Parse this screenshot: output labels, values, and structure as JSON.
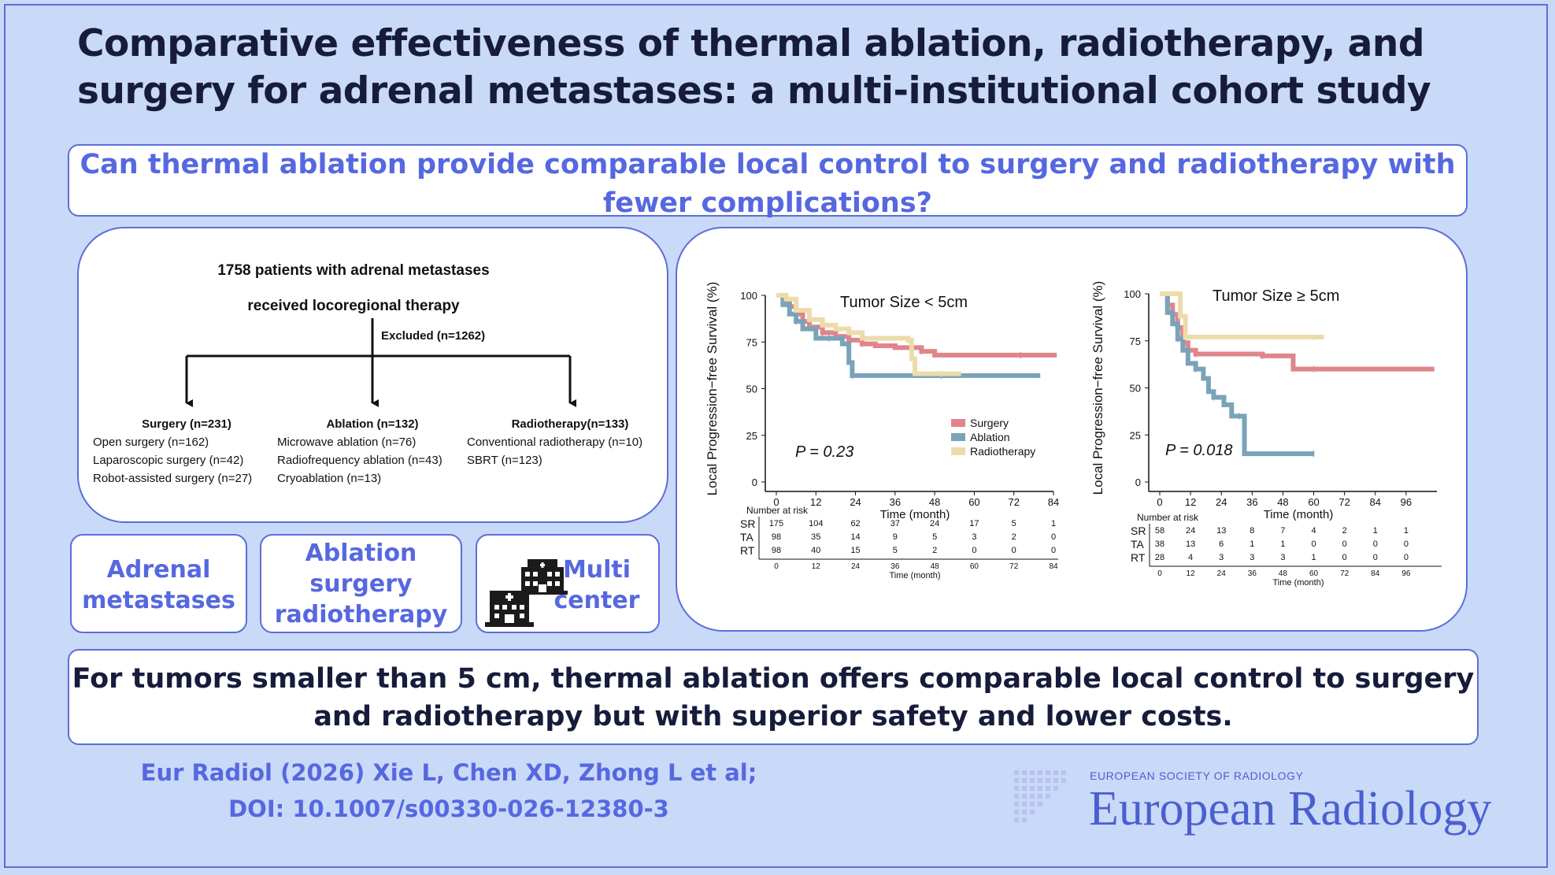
{
  "title_lines": [
    "Comparative effectiveness of thermal ablation, radiotherapy, and",
    "surgery for adrenal metastases: a multi-institutional cohort study"
  ],
  "question_lines": [
    "Can thermal ablation provide comparable local control to surgery and radiotherapy with",
    "fewer complications?"
  ],
  "flowchart": {
    "top_lines": [
      "1758 patients with adrenal metastases",
      "received locoregional therapy"
    ],
    "excluded": "Excluded (n=1262)",
    "groups": [
      {
        "title": "Surgery (n=231)",
        "items": [
          "Open surgery (n=162)",
          "Laparoscopic surgery (n=42)",
          "Robot-assisted surgery (n=27)"
        ]
      },
      {
        "title": "Ablation (n=132)",
        "items": [
          "Microwave ablation (n=76)",
          "Radiofrequency ablation (n=43)",
          "Cryoablation (n=13)"
        ]
      },
      {
        "title": "Radiotherapy(n=133)",
        "items": [
          "Conventional radiotherapy (n=10)",
          "SBRT (n=123)"
        ]
      }
    ]
  },
  "keywords": {
    "adrenal": [
      "Adrenal",
      "metastases"
    ],
    "treatments": [
      "Ablation",
      "surgery",
      "radiotherapy"
    ],
    "multicenter": [
      "Multi",
      "center"
    ]
  },
  "conclusion_lines": [
    "For tumors smaller than 5 cm, thermal ablation offers comparable local control to surgery",
    "and radiotherapy but with superior safety and lower costs."
  ],
  "citation_lines": [
    "Eur Radiol (2026) Xie L, Chen XD, Zhong L et al;",
    "DOI: 10.1007/s00330-026-12380-3"
  ],
  "society": "EUROPEAN SOCIETY OF RADIOLOGY",
  "journal": "European Radiology",
  "colors": {
    "surgery": "#e0858b",
    "ablation": "#7aa3b9",
    "radiotherapy": "#ecdcac",
    "accent": "#5668e0",
    "border": "#5b6fd6",
    "dark": "#161c3a"
  },
  "chart_data": [
    {
      "type": "line",
      "title": "Tumor Size < 5cm",
      "ylabel": "Local Progression−free Survival (%)",
      "xlabel": "Time (month)",
      "xticks": [
        0,
        12,
        24,
        36,
        48,
        60,
        72,
        84
      ],
      "yticks": [
        0,
        25,
        50,
        75,
        100
      ],
      "xlim": [
        0,
        84
      ],
      "ylim": [
        0,
        100
      ],
      "p_value": "P = 0.23",
      "legend": [
        "Surgery",
        "Ablation",
        "Radiotherapy"
      ],
      "legend_position": "lower-right",
      "series": [
        {
          "name": "Surgery",
          "color": "#e0858b",
          "points": [
            [
              0,
              100
            ],
            [
              2,
              97
            ],
            [
              4,
              94
            ],
            [
              6,
              90
            ],
            [
              8,
              86
            ],
            [
              10,
              83
            ],
            [
              14,
              80
            ],
            [
              18,
              78
            ],
            [
              22,
              76
            ],
            [
              26,
              74
            ],
            [
              30,
              73
            ],
            [
              36,
              72
            ],
            [
              44,
              70
            ],
            [
              48,
              68
            ],
            [
              60,
              68
            ],
            [
              74,
              68
            ],
            [
              85,
              68
            ]
          ]
        },
        {
          "name": "Ablation",
          "color": "#7aa3b9",
          "points": [
            [
              0,
              100
            ],
            [
              2,
              95
            ],
            [
              4,
              90
            ],
            [
              6,
              86
            ],
            [
              8,
              82
            ],
            [
              12,
              77
            ],
            [
              16,
              77
            ],
            [
              20,
              74
            ],
            [
              22,
              64
            ],
            [
              23,
              57
            ],
            [
              30,
              57
            ],
            [
              40,
              57
            ],
            [
              50,
              57
            ],
            [
              60,
              57
            ],
            [
              80,
              57
            ]
          ]
        },
        {
          "name": "Radiotherapy",
          "color": "#ecdcac",
          "points": [
            [
              0,
              100
            ],
            [
              3,
              98
            ],
            [
              6,
              92
            ],
            [
              10,
              87
            ],
            [
              14,
              84
            ],
            [
              18,
              82
            ],
            [
              22,
              80
            ],
            [
              26,
              77
            ],
            [
              32,
              77
            ],
            [
              40,
              76
            ],
            [
              41,
              66
            ],
            [
              42,
              58
            ],
            [
              50,
              58
            ],
            [
              56,
              58
            ]
          ]
        }
      ],
      "risk_table": {
        "label": "Number at risk",
        "rows": [
          {
            "name": "SR",
            "values": [
              175,
              104,
              62,
              37,
              24,
              17,
              5,
              1
            ]
          },
          {
            "name": "TA",
            "values": [
              98,
              35,
              14,
              9,
              5,
              3,
              2,
              0
            ]
          },
          {
            "name": "RT",
            "values": [
              98,
              40,
              15,
              5,
              2,
              0,
              0,
              0
            ]
          }
        ]
      }
    },
    {
      "type": "line",
      "title": "Tumor Size ≥ 5cm",
      "ylabel": "Local Progression−free Survival (%)",
      "xlabel": "Time (month)",
      "xticks": [
        0,
        12,
        24,
        36,
        48,
        60,
        72,
        84,
        96
      ],
      "yticks": [
        0,
        25,
        50,
        75,
        100
      ],
      "xlim": [
        0,
        108
      ],
      "ylim": [
        0,
        100
      ],
      "p_value": "P = 0.018",
      "series": [
        {
          "name": "Surgery",
          "color": "#e0858b",
          "points": [
            [
              0,
              100
            ],
            [
              3,
              94
            ],
            [
              5,
              89
            ],
            [
              7,
              82
            ],
            [
              9,
              74
            ],
            [
              11,
              70
            ],
            [
              14,
              68
            ],
            [
              20,
              68
            ],
            [
              30,
              68
            ],
            [
              40,
              67
            ],
            [
              50,
              67
            ],
            [
              52,
              60
            ],
            [
              60,
              60
            ],
            [
              80,
              60
            ],
            [
              107,
              60
            ]
          ]
        },
        {
          "name": "Ablation",
          "color": "#7aa3b9",
          "points": [
            [
              0,
              100
            ],
            [
              3,
              90
            ],
            [
              5,
              84
            ],
            [
              7,
              76
            ],
            [
              9,
              70
            ],
            [
              11,
              63
            ],
            [
              14,
              60
            ],
            [
              17,
              55
            ],
            [
              19,
              48
            ],
            [
              21,
              45
            ],
            [
              25,
              41
            ],
            [
              28,
              35
            ],
            [
              31,
              35
            ],
            [
              33,
              15
            ],
            [
              40,
              15
            ],
            [
              60,
              15
            ]
          ]
        },
        {
          "name": "Radiotherapy",
          "color": "#ecdcac",
          "points": [
            [
              0,
              100
            ],
            [
              6,
              100
            ],
            [
              8,
              88
            ],
            [
              10,
              77
            ],
            [
              20,
              77
            ],
            [
              40,
              77
            ],
            [
              60,
              77
            ],
            [
              64,
              77
            ]
          ]
        }
      ],
      "risk_table": {
        "label": "Number at risk",
        "rows": [
          {
            "name": "SR",
            "values": [
              58,
              24,
              13,
              8,
              7,
              4,
              2,
              1,
              1
            ]
          },
          {
            "name": "TA",
            "values": [
              38,
              13,
              6,
              1,
              1,
              0,
              0,
              0,
              0
            ]
          },
          {
            "name": "RT",
            "values": [
              28,
              4,
              3,
              3,
              3,
              1,
              0,
              0,
              0
            ]
          }
        ]
      }
    }
  ]
}
